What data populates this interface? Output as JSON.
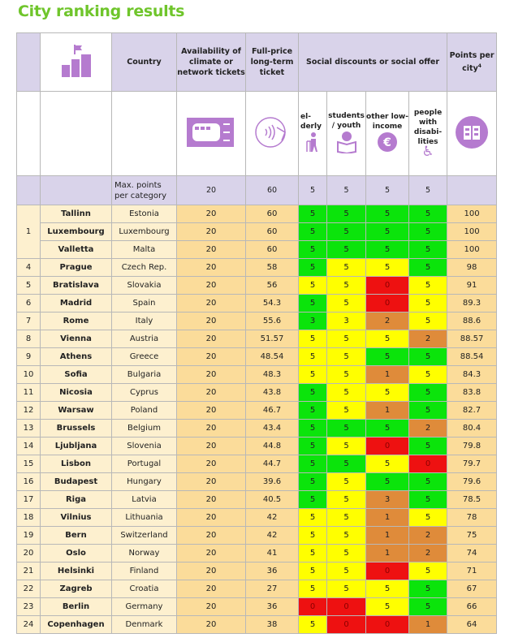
{
  "title": "City ranking results",
  "header": {
    "country": "Country",
    "availability": "Availability of climate or network tickets",
    "full_price": "Full-price long-term ticket",
    "social": "Social discounts or social offer",
    "points": "Points per city",
    "points_sup": "4",
    "sub": {
      "elderly": "el-derly",
      "students": "students / youth",
      "low_income": "other low-income",
      "disabilities": "people with disabi-lities"
    },
    "icons": {
      "rank": "ranking-podium-icon",
      "availability": "train-ticket-icon",
      "full_price": "contactless-card-icon",
      "elderly": "elderly-walker-icon",
      "students": "student-reading-icon",
      "low_income": "euro-coin-icon",
      "disabilities": "wheelchair-icon",
      "points": "city-buildings-icon"
    }
  },
  "max_row": {
    "label": "Max. points per category",
    "availability": "20",
    "full_price": "60",
    "elderly": "5",
    "students": "5",
    "low_income": "5",
    "disabilities": "5"
  },
  "colors": {
    "g": "#0be40b",
    "y": "#ffff00",
    "o": "#df8b3a",
    "r": "#ee1111",
    "header": "#d9d3ea",
    "title": "#6fc52b"
  },
  "rows": [
    {
      "rank": "1",
      "city": "Tallinn",
      "country": "Estonia",
      "avail": "20",
      "price": "60",
      "s": [
        [
          "5",
          "g"
        ],
        [
          "5",
          "g"
        ],
        [
          "5",
          "g"
        ],
        [
          "5",
          "g"
        ]
      ],
      "points": "100"
    },
    {
      "rank": "",
      "city": "Luxembourg",
      "country": "Luxembourg",
      "avail": "20",
      "price": "60",
      "s": [
        [
          "5",
          "g"
        ],
        [
          "5",
          "g"
        ],
        [
          "5",
          "g"
        ],
        [
          "5",
          "g"
        ]
      ],
      "points": "100"
    },
    {
      "rank": "",
      "city": "Valletta",
      "country": "Malta",
      "avail": "20",
      "price": "60",
      "s": [
        [
          "5",
          "g"
        ],
        [
          "5",
          "g"
        ],
        [
          "5",
          "g"
        ],
        [
          "5",
          "g"
        ]
      ],
      "points": "100"
    },
    {
      "rank": "4",
      "city": "Prague",
      "country": "Czech Rep.",
      "avail": "20",
      "price": "58",
      "s": [
        [
          "5",
          "g"
        ],
        [
          "5",
          "y"
        ],
        [
          "5",
          "y"
        ],
        [
          "5",
          "g"
        ]
      ],
      "points": "98"
    },
    {
      "rank": "5",
      "city": "Bratislava",
      "country": "Slovakia",
      "avail": "20",
      "price": "56",
      "s": [
        [
          "5",
          "y"
        ],
        [
          "5",
          "y"
        ],
        [
          "0",
          "r"
        ],
        [
          "5",
          "y"
        ]
      ],
      "points": "91"
    },
    {
      "rank": "6",
      "city": "Madrid",
      "country": "Spain",
      "avail": "20",
      "price": "54.3",
      "s": [
        [
          "5",
          "g"
        ],
        [
          "5",
          "y"
        ],
        [
          "0",
          "r"
        ],
        [
          "5",
          "y"
        ]
      ],
      "points": "89.3"
    },
    {
      "rank": "7",
      "city": "Rome",
      "country": "Italy",
      "avail": "20",
      "price": "55.6",
      "s": [
        [
          "3",
          "g"
        ],
        [
          "3",
          "y"
        ],
        [
          "2",
          "o"
        ],
        [
          "5",
          "y"
        ]
      ],
      "points": "88.6"
    },
    {
      "rank": "8",
      "city": "Vienna",
      "country": "Austria",
      "avail": "20",
      "price": "51.57",
      "s": [
        [
          "5",
          "y"
        ],
        [
          "5",
          "y"
        ],
        [
          "5",
          "y"
        ],
        [
          "2",
          "o"
        ]
      ],
      "points": "88.57"
    },
    {
      "rank": "9",
      "city": "Athens",
      "country": "Greece",
      "avail": "20",
      "price": "48.54",
      "s": [
        [
          "5",
          "y"
        ],
        [
          "5",
          "y"
        ],
        [
          "5",
          "g"
        ],
        [
          "5",
          "g"
        ]
      ],
      "points": "88.54"
    },
    {
      "rank": "10",
      "city": "Sofia",
      "country": "Bulgaria",
      "avail": "20",
      "price": "48.3",
      "s": [
        [
          "5",
          "y"
        ],
        [
          "5",
          "y"
        ],
        [
          "1",
          "o"
        ],
        [
          "5",
          "y"
        ]
      ],
      "points": "84.3"
    },
    {
      "rank": "11",
      "city": "Nicosia",
      "country": "Cyprus",
      "avail": "20",
      "price": "43.8",
      "s": [
        [
          "5",
          "g"
        ],
        [
          "5",
          "y"
        ],
        [
          "5",
          "y"
        ],
        [
          "5",
          "g"
        ]
      ],
      "points": "83.8"
    },
    {
      "rank": "12",
      "city": "Warsaw",
      "country": "Poland",
      "avail": "20",
      "price": "46.7",
      "s": [
        [
          "5",
          "g"
        ],
        [
          "5",
          "y"
        ],
        [
          "1",
          "o"
        ],
        [
          "5",
          "g"
        ]
      ],
      "points": "82.7"
    },
    {
      "rank": "13",
      "city": "Brussels",
      "country": "Belgium",
      "avail": "20",
      "price": "43.4",
      "s": [
        [
          "5",
          "g"
        ],
        [
          "5",
          "g"
        ],
        [
          "5",
          "g"
        ],
        [
          "2",
          "o"
        ]
      ],
      "points": "80.4"
    },
    {
      "rank": "14",
      "city": "Ljubljana",
      "country": "Slovenia",
      "avail": "20",
      "price": "44.8",
      "s": [
        [
          "5",
          "g"
        ],
        [
          "5",
          "y"
        ],
        [
          "0",
          "r"
        ],
        [
          "5",
          "g"
        ]
      ],
      "points": "79.8"
    },
    {
      "rank": "15",
      "city": "Lisbon",
      "country": "Portugal",
      "avail": "20",
      "price": "44.7",
      "s": [
        [
          "5",
          "g"
        ],
        [
          "5",
          "g"
        ],
        [
          "5",
          "y"
        ],
        [
          "0",
          "r"
        ]
      ],
      "points": "79.7"
    },
    {
      "rank": "16",
      "city": "Budapest",
      "country": "Hungary",
      "avail": "20",
      "price": "39.6",
      "s": [
        [
          "5",
          "g"
        ],
        [
          "5",
          "y"
        ],
        [
          "5",
          "g"
        ],
        [
          "5",
          "g"
        ]
      ],
      "points": "79.6"
    },
    {
      "rank": "17",
      "city": "Riga",
      "country": "Latvia",
      "avail": "20",
      "price": "40.5",
      "s": [
        [
          "5",
          "g"
        ],
        [
          "5",
          "y"
        ],
        [
          "3",
          "o"
        ],
        [
          "5",
          "g"
        ]
      ],
      "points": "78.5"
    },
    {
      "rank": "18",
      "city": "Vilnius",
      "country": "Lithuania",
      "avail": "20",
      "price": "42",
      "s": [
        [
          "5",
          "y"
        ],
        [
          "5",
          "y"
        ],
        [
          "1",
          "o"
        ],
        [
          "5",
          "y"
        ]
      ],
      "points": "78"
    },
    {
      "rank": "19",
      "city": "Bern",
      "country": "Switzerland",
      "avail": "20",
      "price": "42",
      "s": [
        [
          "5",
          "y"
        ],
        [
          "5",
          "y"
        ],
        [
          "1",
          "o"
        ],
        [
          "2",
          "o"
        ]
      ],
      "points": "75"
    },
    {
      "rank": "20",
      "city": "Oslo",
      "country": "Norway",
      "avail": "20",
      "price": "41",
      "s": [
        [
          "5",
          "y"
        ],
        [
          "5",
          "y"
        ],
        [
          "1",
          "o"
        ],
        [
          "2",
          "o"
        ]
      ],
      "points": "74"
    },
    {
      "rank": "21",
      "city": "Helsinki",
      "country": "Finland",
      "avail": "20",
      "price": "36",
      "s": [
        [
          "5",
          "y"
        ],
        [
          "5",
          "y"
        ],
        [
          "0",
          "r"
        ],
        [
          "5",
          "y"
        ]
      ],
      "points": "71"
    },
    {
      "rank": "22",
      "city": "Zagreb",
      "country": "Croatia",
      "avail": "20",
      "price": "27",
      "s": [
        [
          "5",
          "y"
        ],
        [
          "5",
          "y"
        ],
        [
          "5",
          "y"
        ],
        [
          "5",
          "g"
        ]
      ],
      "points": "67"
    },
    {
      "rank": "23",
      "city": "Berlin",
      "country": "Germany",
      "avail": "20",
      "price": "36",
      "s": [
        [
          "0",
          "r"
        ],
        [
          "0",
          "r"
        ],
        [
          "5",
          "y"
        ],
        [
          "5",
          "g"
        ]
      ],
      "points": "66"
    },
    {
      "rank": "24",
      "city": "Copenhagen",
      "country": "Denmark",
      "avail": "20",
      "price": "38",
      "s": [
        [
          "5",
          "y"
        ],
        [
          "0",
          "r"
        ],
        [
          "0",
          "r"
        ],
        [
          "1",
          "o"
        ]
      ],
      "points": "64"
    }
  ]
}
